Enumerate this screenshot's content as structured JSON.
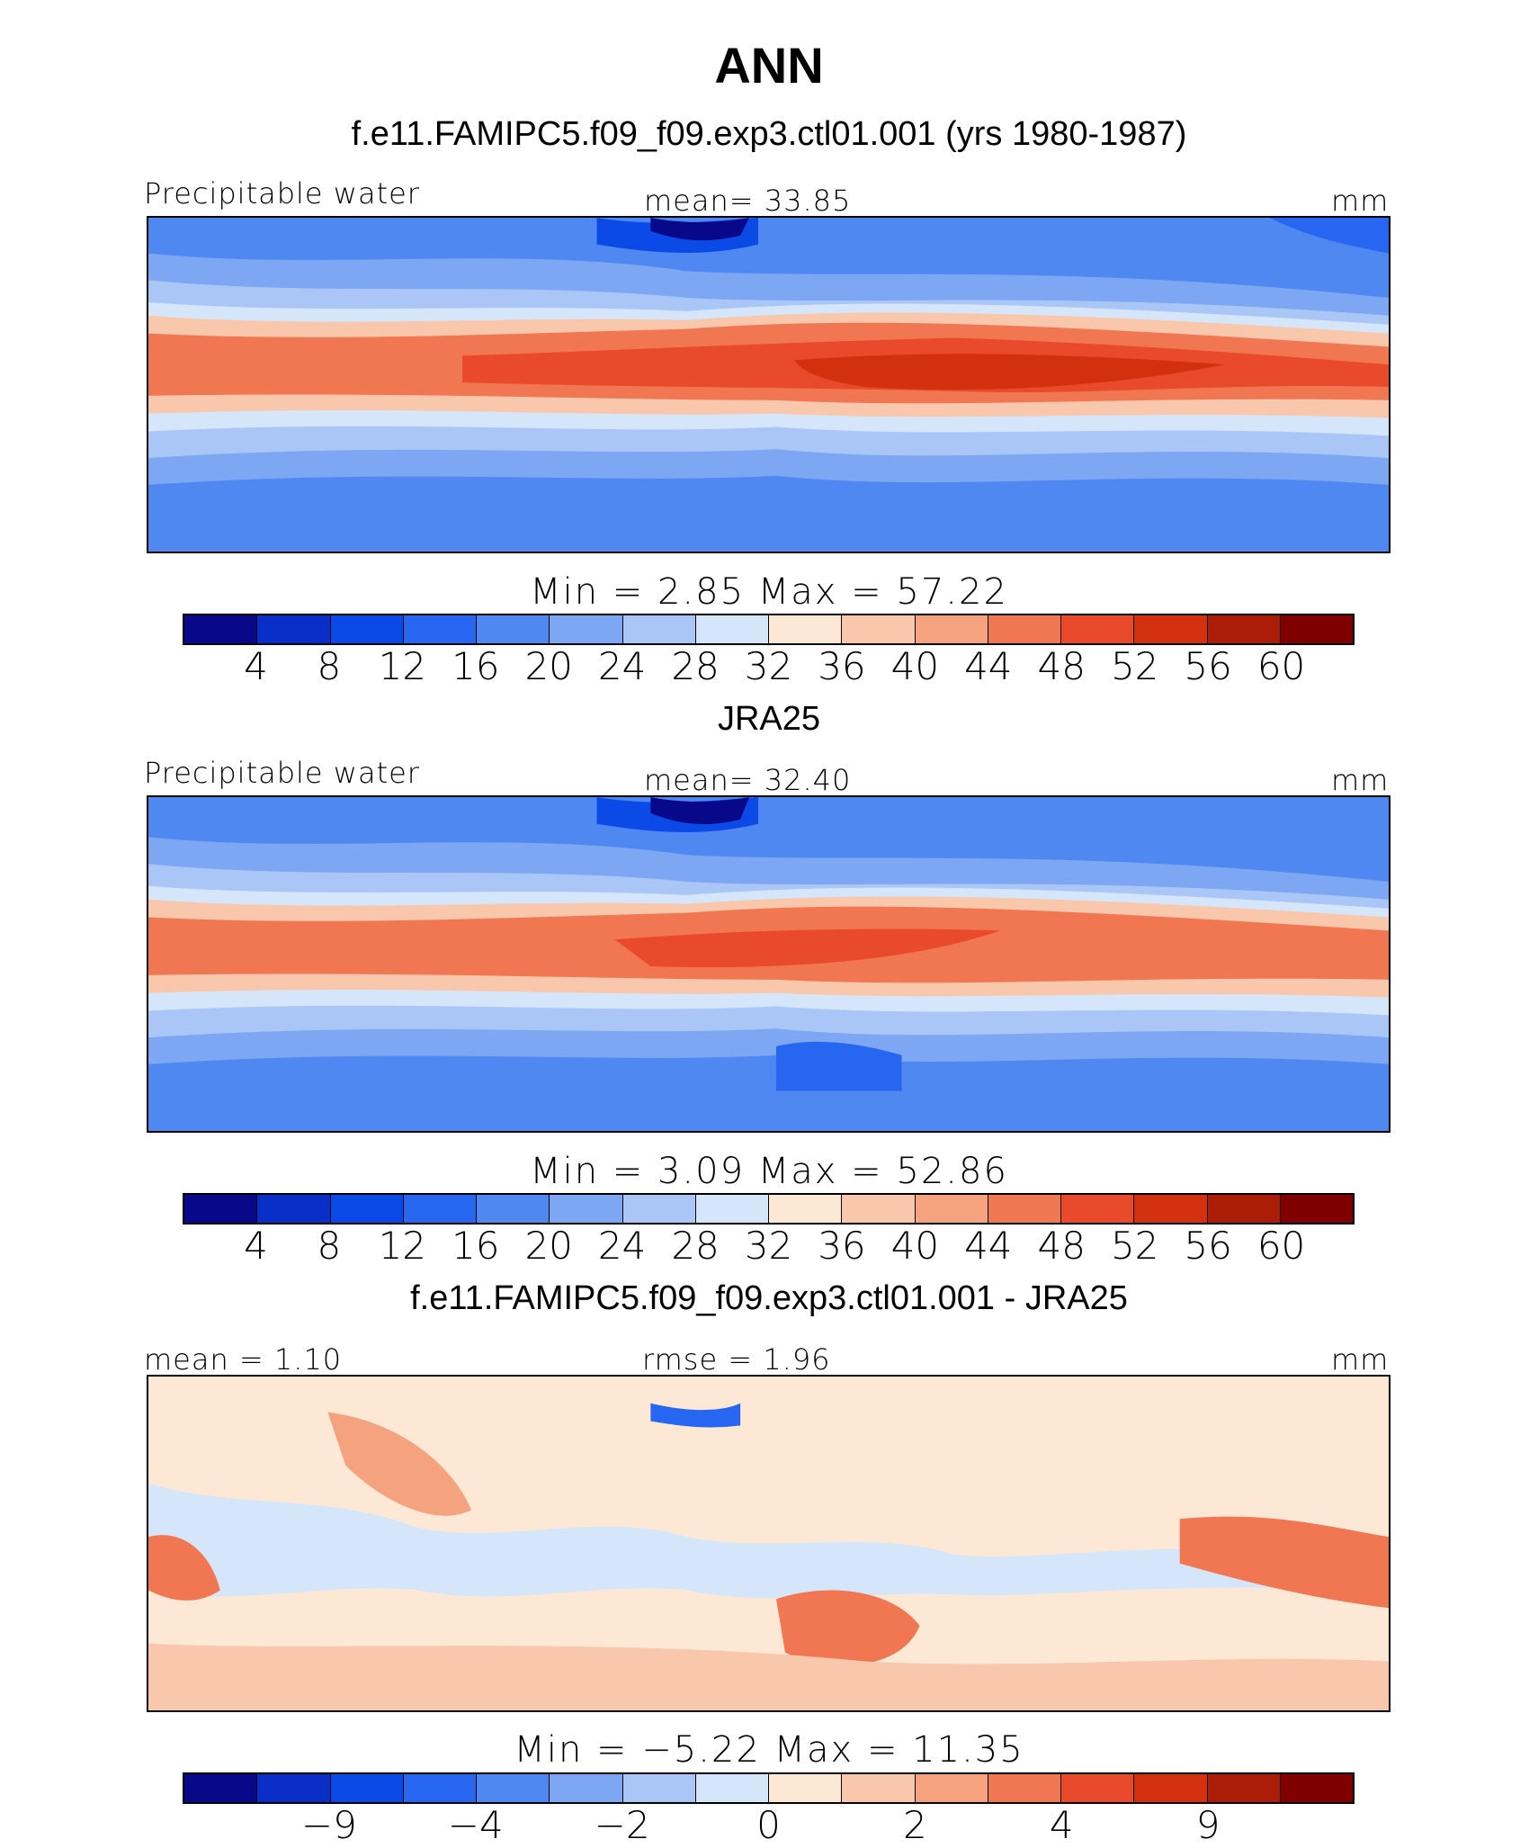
{
  "title": "ANN",
  "units": "mm",
  "palette": [
    "#08088a",
    "#0a2ec8",
    "#0b4ae6",
    "#2766f0",
    "#4f88f0",
    "#7da7f3",
    "#aac6f7",
    "#d5e6fb",
    "#fde8d6",
    "#f9c7ac",
    "#f5a27f",
    "#f17753",
    "#e94a2b",
    "#d3300f",
    "#ac1d08",
    "#800000"
  ],
  "panels": [
    {
      "subtitle": "f.e11.FAMIPC5.f09_f09.exp3.ctl01.001 (yrs 1980-1987)",
      "left_label": "Precipitable water",
      "center_label": "mean=   33.85",
      "right_label": "mm",
      "min_max": "Min  =     2.85  Max  =    57.22",
      "tick_labels": [
        "4",
        "8",
        "12",
        "16",
        "20",
        "24",
        "28",
        "32",
        "36",
        "40",
        "44",
        "48",
        "52",
        "56",
        "60"
      ]
    },
    {
      "subtitle": "JRA25",
      "left_label": "Precipitable water",
      "center_label": "mean=   32.40",
      "right_label": "mm",
      "min_max": "Min  =     3.09  Max  =    52.86",
      "tick_labels": [
        "4",
        "8",
        "12",
        "16",
        "20",
        "24",
        "28",
        "32",
        "36",
        "40",
        "44",
        "48",
        "52",
        "56",
        "60"
      ]
    },
    {
      "subtitle": "f.e11.FAMIPC5.f09_f09.exp3.ctl01.001 - JRA25",
      "left_label": "mean  =     1.10",
      "center_label": "rmse  =     1.96",
      "right_label": "mm",
      "min_max": "Min  =   −5.22  Max  =    11.35",
      "tick_labels": [
        "−9",
        "−4",
        "−2",
        "0",
        "2",
        "4",
        "9"
      ]
    }
  ]
}
